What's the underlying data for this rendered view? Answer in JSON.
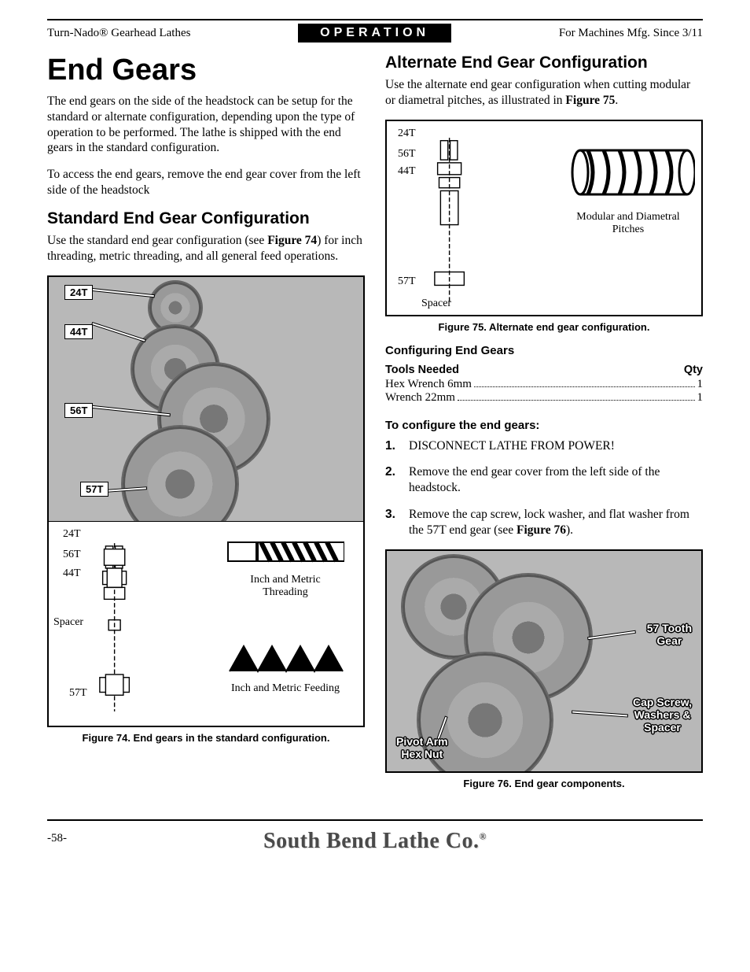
{
  "header": {
    "left": "Turn-Nado® Gearhead Lathes",
    "center": "OPERATION",
    "right": "For Machines Mfg. Since 3/11"
  },
  "left_col": {
    "h1": "End Gears",
    "p1": "The end gears on the side of the headstock can be setup for the standard or alternate configuration, depending upon the type of operation to be performed. The lathe is shipped with the end gears in the standard configuration.",
    "p2": "To access the end gears, remove the end gear cover from the left side of the headstock",
    "h2": "Standard End Gear Configuration",
    "p3_a": "Use the standard end gear configuration (see ",
    "p3_b": "Figure 74",
    "p3_c": ") for inch threading, metric threading, and all general feed operations.",
    "fig74": {
      "labels": {
        "g24": "24T",
        "g44": "44T",
        "g56": "56T",
        "g57": "57T"
      },
      "diag": {
        "t24": "24T",
        "t56": "56T",
        "t44": "44T",
        "spacer": "Spacer",
        "t57": "57T",
        "cap1": "Inch and Metric Threading",
        "cap2": "Inch and Metric Feeding"
      },
      "caption": "Figure 74. End gears in the standard configuration."
    }
  },
  "right_col": {
    "h2": "Alternate End Gear Configuration",
    "p1_a": "Use the alternate end gear configuration when cutting modular or diametral pitches, as illustrated in ",
    "p1_b": "Figure 75",
    "p1_c": ".",
    "fig75": {
      "diag": {
        "t24": "24T",
        "t56": "56T",
        "t44": "44T",
        "t57": "57T",
        "spacer": "Spacer",
        "cap": "Modular and Diametral Pitches"
      },
      "caption": "Figure 75. Alternate end gear configuration."
    },
    "config_head": "Configuring End Gears",
    "tools_head_l": "Tools Needed",
    "tools_head_r": "Qty",
    "tools": [
      {
        "name": "Hex Wrench 6mm",
        "qty": "1"
      },
      {
        "name": "Wrench 22mm",
        "qty": "1"
      }
    ],
    "steps_head": "To configure the end gears:",
    "steps": [
      "DISCONNECT LATHE FROM POWER!",
      "Remove the end gear cover from the left side of the headstock.",
      "Remove the cap screw, lock washer, and flat washer from the 57T end gear (see <b>Figure 76</b>)."
    ],
    "fig76": {
      "labels": {
        "gear57": "57 Tooth Gear",
        "capscrew": "Cap Screw, Washers & Spacer",
        "pivot": "Pivot Arm Hex Nut"
      },
      "caption": "Figure 76. End gear components."
    }
  },
  "footer": {
    "page": "-58-",
    "brand": "South Bend Lathe Co."
  },
  "colors": {
    "ink": "#000000",
    "bg": "#ffffff",
    "photo_bg": "#b8b8b8",
    "brand_gray": "#4a4a4a"
  }
}
